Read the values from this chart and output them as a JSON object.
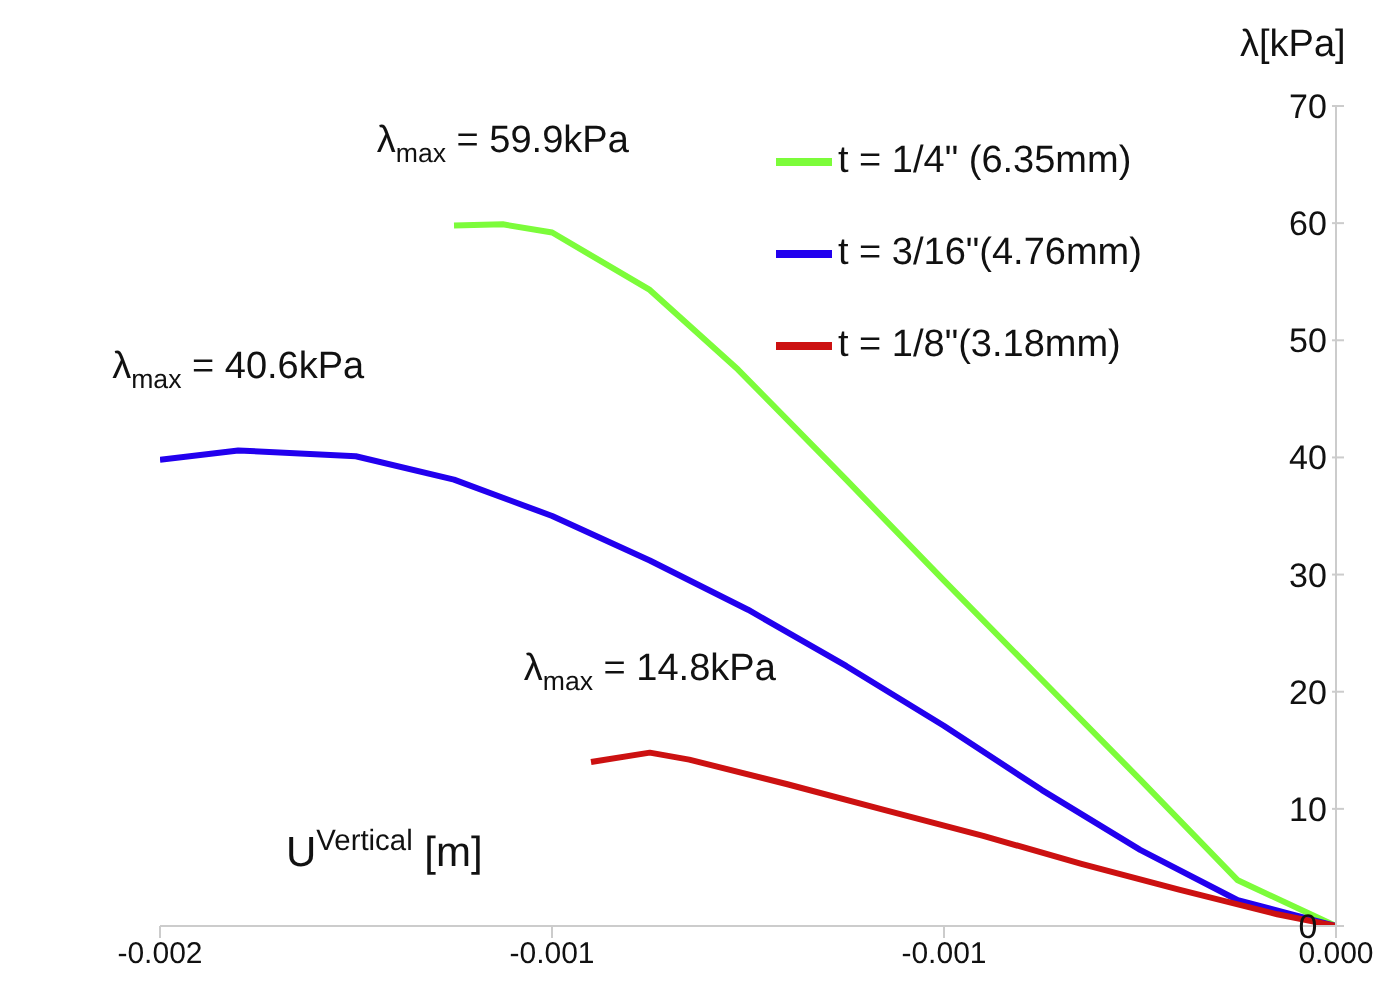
{
  "chart_data": {
    "type": "line",
    "ylabel": "λ[kPa]",
    "xlabel": "U$^{Vertical}$ [m]",
    "xlim": [
      -0.002,
      0
    ],
    "xticks": [
      {
        "value": -0.002,
        "label": "-0.002"
      },
      {
        "value": -0.0013333,
        "label": "-0.001"
      },
      {
        "value": -0.00066667,
        "label": "-0.001"
      },
      {
        "value": 0,
        "label": "0.000"
      }
    ],
    "ylim": [
      0,
      70
    ],
    "yticks": [
      0,
      10,
      20,
      30,
      40,
      50,
      60,
      70
    ],
    "grid": false,
    "legend": "top right",
    "marker": "none",
    "line_style": "solid",
    "series": [
      {
        "name": "t = 1/4\" (6.35mm)",
        "color": "#7cfc3a",
        "x": [
          -0.0015,
          -0.001417,
          -0.001333,
          -0.001167,
          -0.001017,
          -0.000833,
          -0.000667,
          -0.0005,
          -0.000333,
          -0.000167,
          0
        ],
        "values": [
          59.8,
          59.9,
          59.2,
          54.3,
          47.5,
          38.1,
          29.5,
          21.0,
          12.5,
          3.9,
          0
        ]
      },
      {
        "name": "t = 3/16\"(4.76mm)",
        "color": "#2200ee",
        "x": [
          -0.002,
          -0.001867,
          -0.001667,
          -0.0015,
          -0.001333,
          -0.001167,
          -0.001,
          -0.000833,
          -0.000667,
          -0.0005,
          -0.000333,
          -0.000167,
          0
        ],
        "values": [
          39.8,
          40.6,
          40.1,
          38.1,
          35.0,
          31.2,
          27.0,
          22.2,
          17.1,
          11.6,
          6.5,
          2.2,
          0
        ]
      },
      {
        "name": "t = 1/8\"(3.18mm)",
        "color": "#cc1111",
        "x": [
          -0.001267,
          -0.001167,
          -0.0011,
          -0.000933,
          -0.000767,
          -0.0006,
          -0.000433,
          -0.000267,
          -0.0001,
          0
        ],
        "values": [
          14.0,
          14.8,
          14.2,
          12.1,
          9.9,
          7.7,
          5.3,
          3.1,
          1.0,
          0
        ]
      }
    ],
    "annotations": [
      {
        "text": "λ$_{max}$ = 59.9kPa",
        "x": -0.001417,
        "y": 59.9
      },
      {
        "text": "λ$_{max}$ = 40.6kPa",
        "x": -0.001867,
        "y": 40.6
      },
      {
        "text": "λ$_{max}$ = 14.8kPa",
        "x": -0.001167,
        "y": 14.8
      }
    ]
  }
}
